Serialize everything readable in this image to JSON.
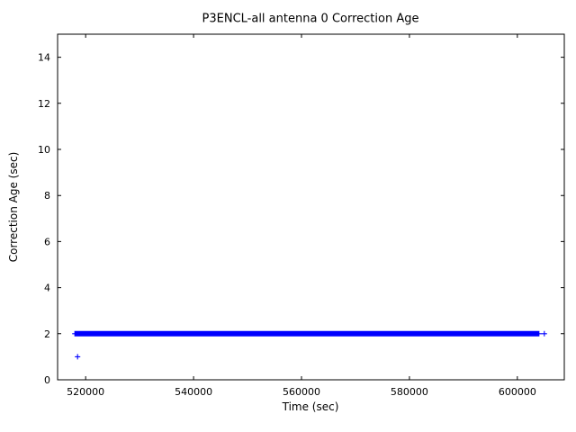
{
  "figure": {
    "background": "#ffffff"
  },
  "chart_data": {
    "type": "scatter",
    "title": "P3ENCL-all antenna 0 Correction Age",
    "xlabel": "Time (sec)",
    "ylabel": "Correction Age (sec)",
    "xlim": [
      514800,
      608700
    ],
    "ylim": [
      0,
      15
    ],
    "xticks": [
      520000,
      540000,
      560000,
      580000,
      600000
    ],
    "yticks": [
      0,
      2,
      4,
      6,
      8,
      10,
      12,
      14
    ],
    "grid": false,
    "legend": null,
    "marker": "+",
    "marker_color": "#0000ff",
    "axis_color": "#000000",
    "series": [
      {
        "name": "antenna0-correction-age",
        "band": {
          "y": 2,
          "x_start": 518000,
          "x_end": 604000,
          "point_count": 800
        },
        "points": [
          {
            "x": 518500,
            "y": 1
          },
          {
            "x": 605000,
            "y": 2
          }
        ]
      }
    ]
  }
}
